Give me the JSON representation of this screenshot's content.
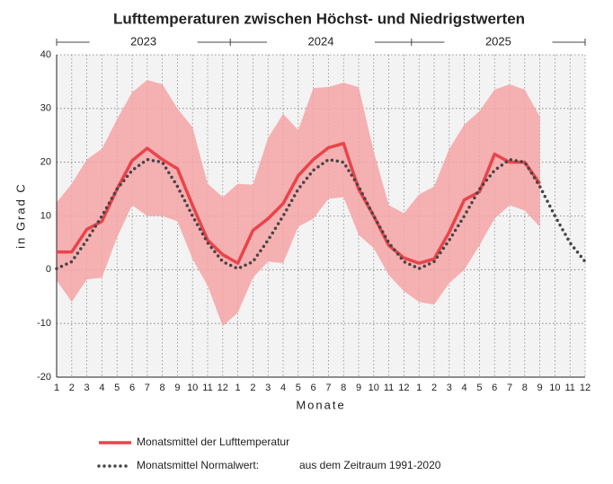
{
  "chart_data": {
    "type": "line",
    "title": "Lufttemperaturen zwischen Höchst- und Niedrigstwerten",
    "y_label": "in Grad C",
    "x_label": "Monate",
    "years": [
      "2023",
      "2024",
      "2025"
    ],
    "categories": [
      "1",
      "2",
      "3",
      "4",
      "5",
      "6",
      "7",
      "8",
      "9",
      "10",
      "11",
      "12",
      "1",
      "2",
      "3",
      "4",
      "5",
      "6",
      "7",
      "8",
      "9",
      "10",
      "11",
      "12",
      "1",
      "2",
      "3",
      "4",
      "5",
      "6",
      "7",
      "8",
      "9",
      "10",
      "11",
      "12"
    ],
    "ylim": [
      -20,
      40
    ],
    "yticks": [
      -20,
      -10,
      0,
      10,
      20,
      30,
      40
    ],
    "grid": true,
    "band": {
      "color": "#f4a3a6",
      "max": [
        12.5,
        16,
        20.5,
        22.5,
        28,
        33,
        35.3,
        34.5,
        30,
        26.5,
        16,
        13.5,
        16,
        15.8,
        24.5,
        29,
        26,
        33.8,
        34,
        34.8,
        34,
        22,
        12,
        10.5,
        14,
        15.5,
        22.5,
        27,
        29.5,
        33.5,
        34.5,
        33.5,
        28.5,
        null,
        null,
        null
      ],
      "min": [
        -2,
        -6,
        -1.8,
        -1.5,
        6,
        12,
        10,
        10,
        9,
        2,
        -3,
        -10.5,
        -8,
        -1.5,
        1.5,
        1.2,
        8,
        9.5,
        13.2,
        13.5,
        6.5,
        4,
        -1,
        -4,
        -6,
        -6.5,
        -2.5,
        0,
        4.5,
        9.5,
        12,
        11,
        8,
        null,
        null,
        null
      ]
    },
    "series": [
      {
        "name": "Monatsmittel der Lufttemperatur",
        "color": "#e8444b",
        "style": "solid",
        "values": [
          3.3,
          3.3,
          7.5,
          9,
          15,
          20.3,
          22.6,
          20.5,
          18.8,
          12,
          5.5,
          2.8,
          1.2,
          7.3,
          9.5,
          12.3,
          17.5,
          20.5,
          22.7,
          23.5,
          15,
          10,
          4.5,
          2.2,
          1.2,
          2,
          7,
          13,
          14.5,
          21.5,
          20,
          20,
          16,
          null,
          null,
          null
        ]
      },
      {
        "name": "Monatsmittel Normalwert:",
        "color": "#444444",
        "style": "dotted",
        "note": "aus dem Zeitraum 1991-2020",
        "values": [
          0.2,
          1.5,
          5.5,
          10,
          15,
          18.5,
          20.5,
          20,
          15.5,
          10,
          5,
          1.5,
          0.2,
          1.5,
          5.5,
          10,
          15,
          18.5,
          20.5,
          20,
          15.5,
          10,
          5,
          1.5,
          0.2,
          1.5,
          5.5,
          10,
          15,
          18.5,
          20.5,
          20,
          15.5,
          10,
          5,
          1.5
        ]
      }
    ]
  }
}
